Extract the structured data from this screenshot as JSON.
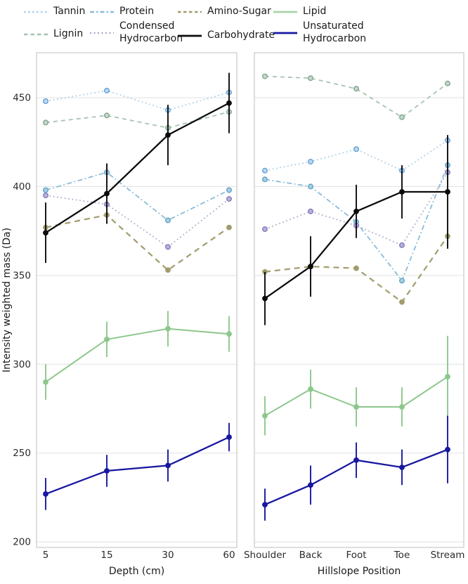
{
  "legend": {
    "items": [
      {
        "name": "tannin",
        "label": "Tannin",
        "label2": "",
        "color": "#a9cfe9",
        "legend_dash": "2.5 3.5"
      },
      {
        "name": "lignin",
        "label": "Lignin",
        "label2": "",
        "color": "#a6c4b3",
        "legend_dash": "5.5 4"
      },
      {
        "name": "protein",
        "label": "Protein",
        "label2": "",
        "color": "#8abcd9",
        "legend_dash": "6 3 2.5 3"
      },
      {
        "name": "condensed-hydrocarbon",
        "label": "Condensed",
        "label2": "Hydrocarbon",
        "color": "#a9abcd",
        "legend_dash": "2 3.5"
      },
      {
        "name": "amino-sugar",
        "label": "Amino-Sugar",
        "label2": "",
        "color": "#a19c6c",
        "legend_dash": "4.5 3.5"
      },
      {
        "name": "carbohydrate",
        "label": "Carbohydrate",
        "label2": "",
        "color": "#0b0b0b",
        "legend_dash": ""
      },
      {
        "name": "lipid",
        "label": "Lipid",
        "label2": "",
        "color": "#a9d4a9",
        "legend_dash": ""
      },
      {
        "name": "unsaturated-hydrocarbon",
        "label": "Unsaturated",
        "label2": "Hydrocarbon",
        "color": "#1717a0",
        "legend_dash": ""
      }
    ]
  },
  "series_styles": {
    "Tannin": {
      "color": "#a9cfe9",
      "marker_edge": "#64a1d8",
      "marker_fill": "#bcdaf2",
      "dash": "1.8 3.6",
      "line_width": 1.8,
      "filled": false
    },
    "Lignin": {
      "color": "#a6c4b3",
      "marker_edge": "#82a58f",
      "marker_fill": "#c6d9cb",
      "dash": "6 5",
      "line_width": 1.8,
      "filled": false
    },
    "Protein": {
      "color": "#8abcd9",
      "marker_edge": "#62a4c6",
      "marker_fill": "#a8cfe1",
      "dash": "7 3.5 1.8 3.5",
      "line_width": 1.8,
      "filled": false
    },
    "Condensed Hydrocarbon": {
      "color": "#a9abcd",
      "marker_edge": "#867cbe",
      "marker_fill": "#b7b1da",
      "dash": "1.8 3.6",
      "line_width": 1.7,
      "filled": false
    },
    "Amino-Sugar": {
      "color": "#a19c6c",
      "marker_edge": "#7e7a4f",
      "marker_fill": "#8e895d",
      "dash": "8 6",
      "line_width": 2.2,
      "filled": true
    },
    "Carbohydrate": {
      "color": "#0b0b0b",
      "marker_edge": "#0b0b0b",
      "marker_fill": "#0b0b0b",
      "dash": "",
      "line_width": 2.3,
      "filled": true
    },
    "Lipid": {
      "color": "#8cc78c",
      "marker_edge": "#8cc78c",
      "marker_fill": "#8cc78c",
      "dash": "",
      "line_width": 2.0,
      "filled": true
    },
    "Unsaturated Hydrocarbon": {
      "color": "#1717a0",
      "marker_edge": "#1717a0",
      "marker_fill": "#1717a0",
      "dash": "",
      "line_width": 2.3,
      "filled": true
    }
  },
  "chart_data": {
    "type": "line",
    "ylabel": "Intensity weighted mass (Da)",
    "ylim": [
      197,
      475
    ],
    "yticks": [
      450,
      400,
      350,
      300,
      250,
      200
    ],
    "grid": true,
    "legend_position": "top",
    "panels": [
      {
        "xlabel": "Depth (cm)",
        "categories": [
          "5",
          "15",
          "30",
          "60"
        ],
        "series": [
          {
            "name": "Tannin",
            "values": [
              448,
              454,
              443,
              453
            ]
          },
          {
            "name": "Lignin",
            "values": [
              436,
              440,
              433,
              442
            ]
          },
          {
            "name": "Protein",
            "values": [
              398,
              408,
              381,
              398
            ]
          },
          {
            "name": "Condensed Hydrocarbon",
            "values": [
              395,
              390,
              366,
              393
            ]
          },
          {
            "name": "Amino-Sugar",
            "values": [
              377,
              384,
              353,
              377
            ]
          },
          {
            "name": "Carbohydrate",
            "values": [
              374,
              396,
              429,
              447
            ],
            "errors": [
              17,
              17,
              17,
              17
            ]
          },
          {
            "name": "Lipid",
            "values": [
              290,
              314,
              320,
              317
            ],
            "errors": [
              10,
              10,
              10,
              10
            ]
          },
          {
            "name": "Unsaturated Hydrocarbon",
            "values": [
              227,
              240,
              243,
              259
            ],
            "errors": [
              9,
              9,
              9,
              8
            ]
          }
        ]
      },
      {
        "xlabel": "Hillslope Position",
        "categories": [
          "Shoulder",
          "Back",
          "Foot",
          "Toe",
          "Stream"
        ],
        "series": [
          {
            "name": "Tannin",
            "values": [
              409,
              414,
              421,
              409,
              426
            ]
          },
          {
            "name": "Lignin",
            "values": [
              462,
              461,
              455,
              439,
              458
            ]
          },
          {
            "name": "Protein",
            "values": [
              404,
              400,
              380,
              347,
              412
            ]
          },
          {
            "name": "Condensed Hydrocarbon",
            "values": [
              376,
              386,
              378,
              367,
              408
            ]
          },
          {
            "name": "Amino-Sugar",
            "values": [
              352,
              355,
              354,
              335,
              372
            ]
          },
          {
            "name": "Carbohydrate",
            "values": [
              337,
              355,
              386,
              397,
              397
            ],
            "errors": [
              15,
              17,
              15,
              15,
              32
            ]
          },
          {
            "name": "Lipid",
            "values": [
              271,
              286,
              276,
              276,
              293
            ],
            "errors": [
              11,
              11,
              11,
              11,
              23
            ]
          },
          {
            "name": "Unsaturated Hydrocarbon",
            "values": [
              221,
              232,
              246,
              242,
              252
            ],
            "errors": [
              9,
              11,
              10,
              10,
              19
            ]
          }
        ]
      }
    ]
  }
}
